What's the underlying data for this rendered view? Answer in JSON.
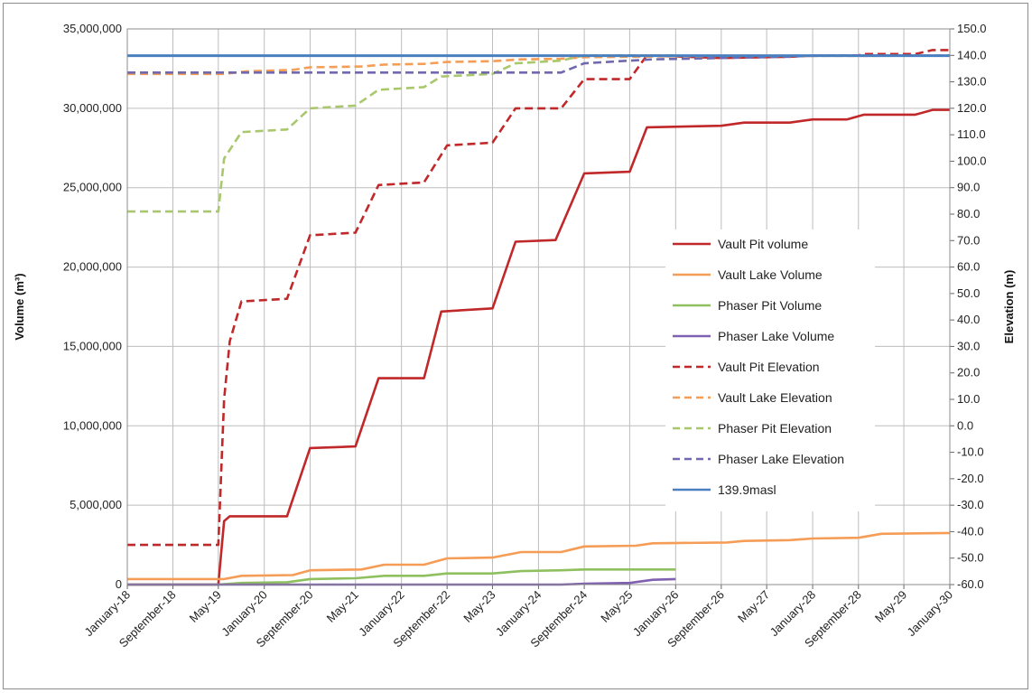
{
  "chart_data": {
    "type": "line",
    "xlabel": "",
    "ylabel": "Volume (m³)",
    "y2label": "Elevation (m)",
    "ylim": [
      0,
      35000000
    ],
    "y2lim": [
      -60,
      150
    ],
    "xlim": [
      "2018-01-01",
      "2030-01-01"
    ],
    "y_ticks": [
      "0",
      "5,000,000",
      "10,000,000",
      "15,000,000",
      "20,000,000",
      "25,000,000",
      "30,000,000",
      "35,000,000"
    ],
    "y2_ticks": [
      "-60.0",
      "-50.0",
      "-40.0",
      "-30.0",
      "-20.0",
      "-10.0",
      "0.0",
      "10.0",
      "20.0",
      "30.0",
      "40.0",
      "50.0",
      "60.0",
      "70.0",
      "80.0",
      "90.0",
      "100.0",
      "110.0",
      "120.0",
      "130.0",
      "140.0",
      "150.0"
    ],
    "x_ticks": [
      {
        "label": "January-18",
        "date": "2018-01-01"
      },
      {
        "label": "September-18",
        "date": "2018-09-01"
      },
      {
        "label": "May-19",
        "date": "2019-05-01"
      },
      {
        "label": "January-20",
        "date": "2020-01-01"
      },
      {
        "label": "September-20",
        "date": "2020-09-01"
      },
      {
        "label": "May-21",
        "date": "2021-05-01"
      },
      {
        "label": "January-22",
        "date": "2022-01-01"
      },
      {
        "label": "September-22",
        "date": "2022-09-01"
      },
      {
        "label": "May-23",
        "date": "2023-05-01"
      },
      {
        "label": "January-24",
        "date": "2024-01-01"
      },
      {
        "label": "September-24",
        "date": "2024-09-01"
      },
      {
        "label": "May-25",
        "date": "2025-05-01"
      },
      {
        "label": "January-26",
        "date": "2026-01-01"
      },
      {
        "label": "September-26",
        "date": "2026-09-01"
      },
      {
        "label": "May-27",
        "date": "2027-05-01"
      },
      {
        "label": "January-28",
        "date": "2028-01-01"
      },
      {
        "label": "September-28",
        "date": "2028-09-01"
      },
      {
        "label": "May-29",
        "date": "2029-05-01"
      },
      {
        "label": "January-30",
        "date": "2030-01-01"
      }
    ],
    "grid": true,
    "legend_position": "right-center",
    "series": [
      {
        "name": "Vault Pit volume",
        "axis": "left",
        "color": "#c0282a",
        "dash": "solid",
        "points": [
          [
            "2018-01-01",
            0
          ],
          [
            "2019-05-01",
            0
          ],
          [
            "2019-06-01",
            4000000
          ],
          [
            "2019-07-01",
            4300000
          ],
          [
            "2020-05-01",
            4300000
          ],
          [
            "2020-09-01",
            8600000
          ],
          [
            "2021-05-01",
            8700000
          ],
          [
            "2021-09-01",
            13000000
          ],
          [
            "2022-05-01",
            13000000
          ],
          [
            "2022-08-01",
            17200000
          ],
          [
            "2023-05-01",
            17400000
          ],
          [
            "2023-09-01",
            21600000
          ],
          [
            "2024-04-01",
            21700000
          ],
          [
            "2024-09-01",
            25900000
          ],
          [
            "2025-05-01",
            26000000
          ],
          [
            "2025-08-01",
            28800000
          ],
          [
            "2026-09-01",
            28900000
          ],
          [
            "2027-01-01",
            29100000
          ],
          [
            "2027-09-01",
            29100000
          ],
          [
            "2028-01-01",
            29300000
          ],
          [
            "2028-07-01",
            29300000
          ],
          [
            "2028-10-01",
            29600000
          ],
          [
            "2029-07-01",
            29600000
          ],
          [
            "2029-10-01",
            29900000
          ],
          [
            "2030-01-01",
            29900000
          ]
        ]
      },
      {
        "name": "Vault Lake Volume",
        "axis": "left",
        "color": "#f59d56",
        "dash": "solid",
        "points": [
          [
            "2018-01-01",
            350000
          ],
          [
            "2019-06-01",
            350000
          ],
          [
            "2019-09-01",
            550000
          ],
          [
            "2020-06-01",
            600000
          ],
          [
            "2020-09-01",
            900000
          ],
          [
            "2021-06-01",
            950000
          ],
          [
            "2021-10-01",
            1250000
          ],
          [
            "2022-05-01",
            1250000
          ],
          [
            "2022-09-01",
            1650000
          ],
          [
            "2023-05-01",
            1700000
          ],
          [
            "2023-10-01",
            2050000
          ],
          [
            "2024-05-01",
            2050000
          ],
          [
            "2024-09-01",
            2400000
          ],
          [
            "2025-06-01",
            2450000
          ],
          [
            "2025-09-01",
            2600000
          ],
          [
            "2026-10-01",
            2650000
          ],
          [
            "2027-01-01",
            2750000
          ],
          [
            "2027-09-01",
            2800000
          ],
          [
            "2028-01-01",
            2900000
          ],
          [
            "2028-09-01",
            2950000
          ],
          [
            "2029-01-01",
            3200000
          ],
          [
            "2030-01-01",
            3250000
          ]
        ]
      },
      {
        "name": "Phaser Pit Volume",
        "axis": "left",
        "color": "#8fc060",
        "dash": "solid",
        "points": [
          [
            "2018-01-01",
            0
          ],
          [
            "2019-05-01",
            0
          ],
          [
            "2019-09-01",
            100000
          ],
          [
            "2020-05-01",
            150000
          ],
          [
            "2020-09-01",
            350000
          ],
          [
            "2021-05-01",
            400000
          ],
          [
            "2021-10-01",
            550000
          ],
          [
            "2022-05-01",
            550000
          ],
          [
            "2022-09-01",
            700000
          ],
          [
            "2023-05-01",
            700000
          ],
          [
            "2023-10-01",
            850000
          ],
          [
            "2024-05-01",
            900000
          ],
          [
            "2024-09-01",
            950000
          ],
          [
            "2026-01-01",
            950000
          ]
        ]
      },
      {
        "name": "Phaser Lake Volume",
        "axis": "left",
        "color": "#8060b0",
        "dash": "solid",
        "points": [
          [
            "2018-01-01",
            0
          ],
          [
            "2024-05-01",
            0
          ],
          [
            "2024-09-01",
            50000
          ],
          [
            "2025-05-01",
            100000
          ],
          [
            "2025-09-01",
            300000
          ],
          [
            "2026-01-01",
            350000
          ]
        ]
      },
      {
        "name": "Vault Pit Elevation",
        "axis": "right",
        "color": "#c0282a",
        "dash": "dashed",
        "points": [
          [
            "2018-01-01",
            -45
          ],
          [
            "2019-05-01",
            -45
          ],
          [
            "2019-06-01",
            10
          ],
          [
            "2019-07-01",
            32
          ],
          [
            "2019-09-01",
            47
          ],
          [
            "2020-05-01",
            48
          ],
          [
            "2020-09-01",
            72
          ],
          [
            "2021-05-01",
            73
          ],
          [
            "2021-09-01",
            91
          ],
          [
            "2022-05-01",
            92
          ],
          [
            "2022-09-01",
            106
          ],
          [
            "2023-05-01",
            107
          ],
          [
            "2023-09-01",
            120
          ],
          [
            "2024-05-01",
            120
          ],
          [
            "2024-09-01",
            131
          ],
          [
            "2025-05-01",
            131
          ],
          [
            "2025-08-01",
            140
          ],
          [
            "2026-09-01",
            139
          ],
          [
            "2027-09-01",
            139.5
          ],
          [
            "2028-01-01",
            139.9
          ],
          [
            "2028-09-01",
            140
          ],
          [
            "2028-10-01",
            140.5
          ],
          [
            "2029-07-01",
            140.5
          ],
          [
            "2029-10-01",
            142
          ],
          [
            "2030-01-01",
            142
          ]
        ]
      },
      {
        "name": "Vault Lake Elevation",
        "axis": "right",
        "color": "#f59d56",
        "dash": "dashed",
        "points": [
          [
            "2018-01-01",
            133
          ],
          [
            "2019-06-01",
            133
          ],
          [
            "2019-10-01",
            134
          ],
          [
            "2020-06-01",
            134.5
          ],
          [
            "2020-09-01",
            135.5
          ],
          [
            "2021-06-01",
            135.8
          ],
          [
            "2021-10-01",
            136.5
          ],
          [
            "2022-05-01",
            136.8
          ],
          [
            "2022-09-01",
            137.5
          ],
          [
            "2023-05-01",
            137.8
          ],
          [
            "2023-10-01",
            138.5
          ],
          [
            "2024-05-01",
            138.7
          ],
          [
            "2024-09-01",
            139.3
          ],
          [
            "2025-06-01",
            139.5
          ],
          [
            "2026-01-01",
            139.7
          ],
          [
            "2030-01-01",
            139.9
          ]
        ]
      },
      {
        "name": "Phaser Pit Elevation",
        "axis": "right",
        "color": "#a9c76d",
        "dash": "dashed",
        "points": [
          [
            "2018-01-01",
            81
          ],
          [
            "2019-05-01",
            81
          ],
          [
            "2019-06-01",
            101
          ],
          [
            "2019-09-01",
            111
          ],
          [
            "2020-05-01",
            112
          ],
          [
            "2020-09-01",
            120
          ],
          [
            "2021-05-01",
            121
          ],
          [
            "2021-09-01",
            127
          ],
          [
            "2022-05-01",
            128
          ],
          [
            "2022-08-01",
            132
          ],
          [
            "2023-05-01",
            133
          ],
          [
            "2023-09-01",
            137
          ],
          [
            "2024-05-01",
            138
          ],
          [
            "2024-09-01",
            140
          ],
          [
            "2026-01-01",
            140
          ]
        ]
      },
      {
        "name": "Phaser Lake Elevation",
        "axis": "right",
        "color": "#7068b0",
        "dash": "dashed",
        "points": [
          [
            "2018-01-01",
            133.5
          ],
          [
            "2024-05-01",
            133.5
          ],
          [
            "2024-09-01",
            137
          ],
          [
            "2025-05-01",
            138
          ],
          [
            "2025-09-01",
            138.5
          ],
          [
            "2026-09-01",
            139
          ],
          [
            "2027-09-01",
            139.5
          ],
          [
            "2028-01-01",
            139.9
          ],
          [
            "2030-01-01",
            139.9
          ]
        ]
      },
      {
        "name": "139.9masl",
        "axis": "right",
        "color": "#4a7fc0",
        "dash": "solid",
        "points": [
          [
            "2018-01-01",
            139.9
          ],
          [
            "2030-01-01",
            139.9
          ]
        ]
      }
    ]
  }
}
